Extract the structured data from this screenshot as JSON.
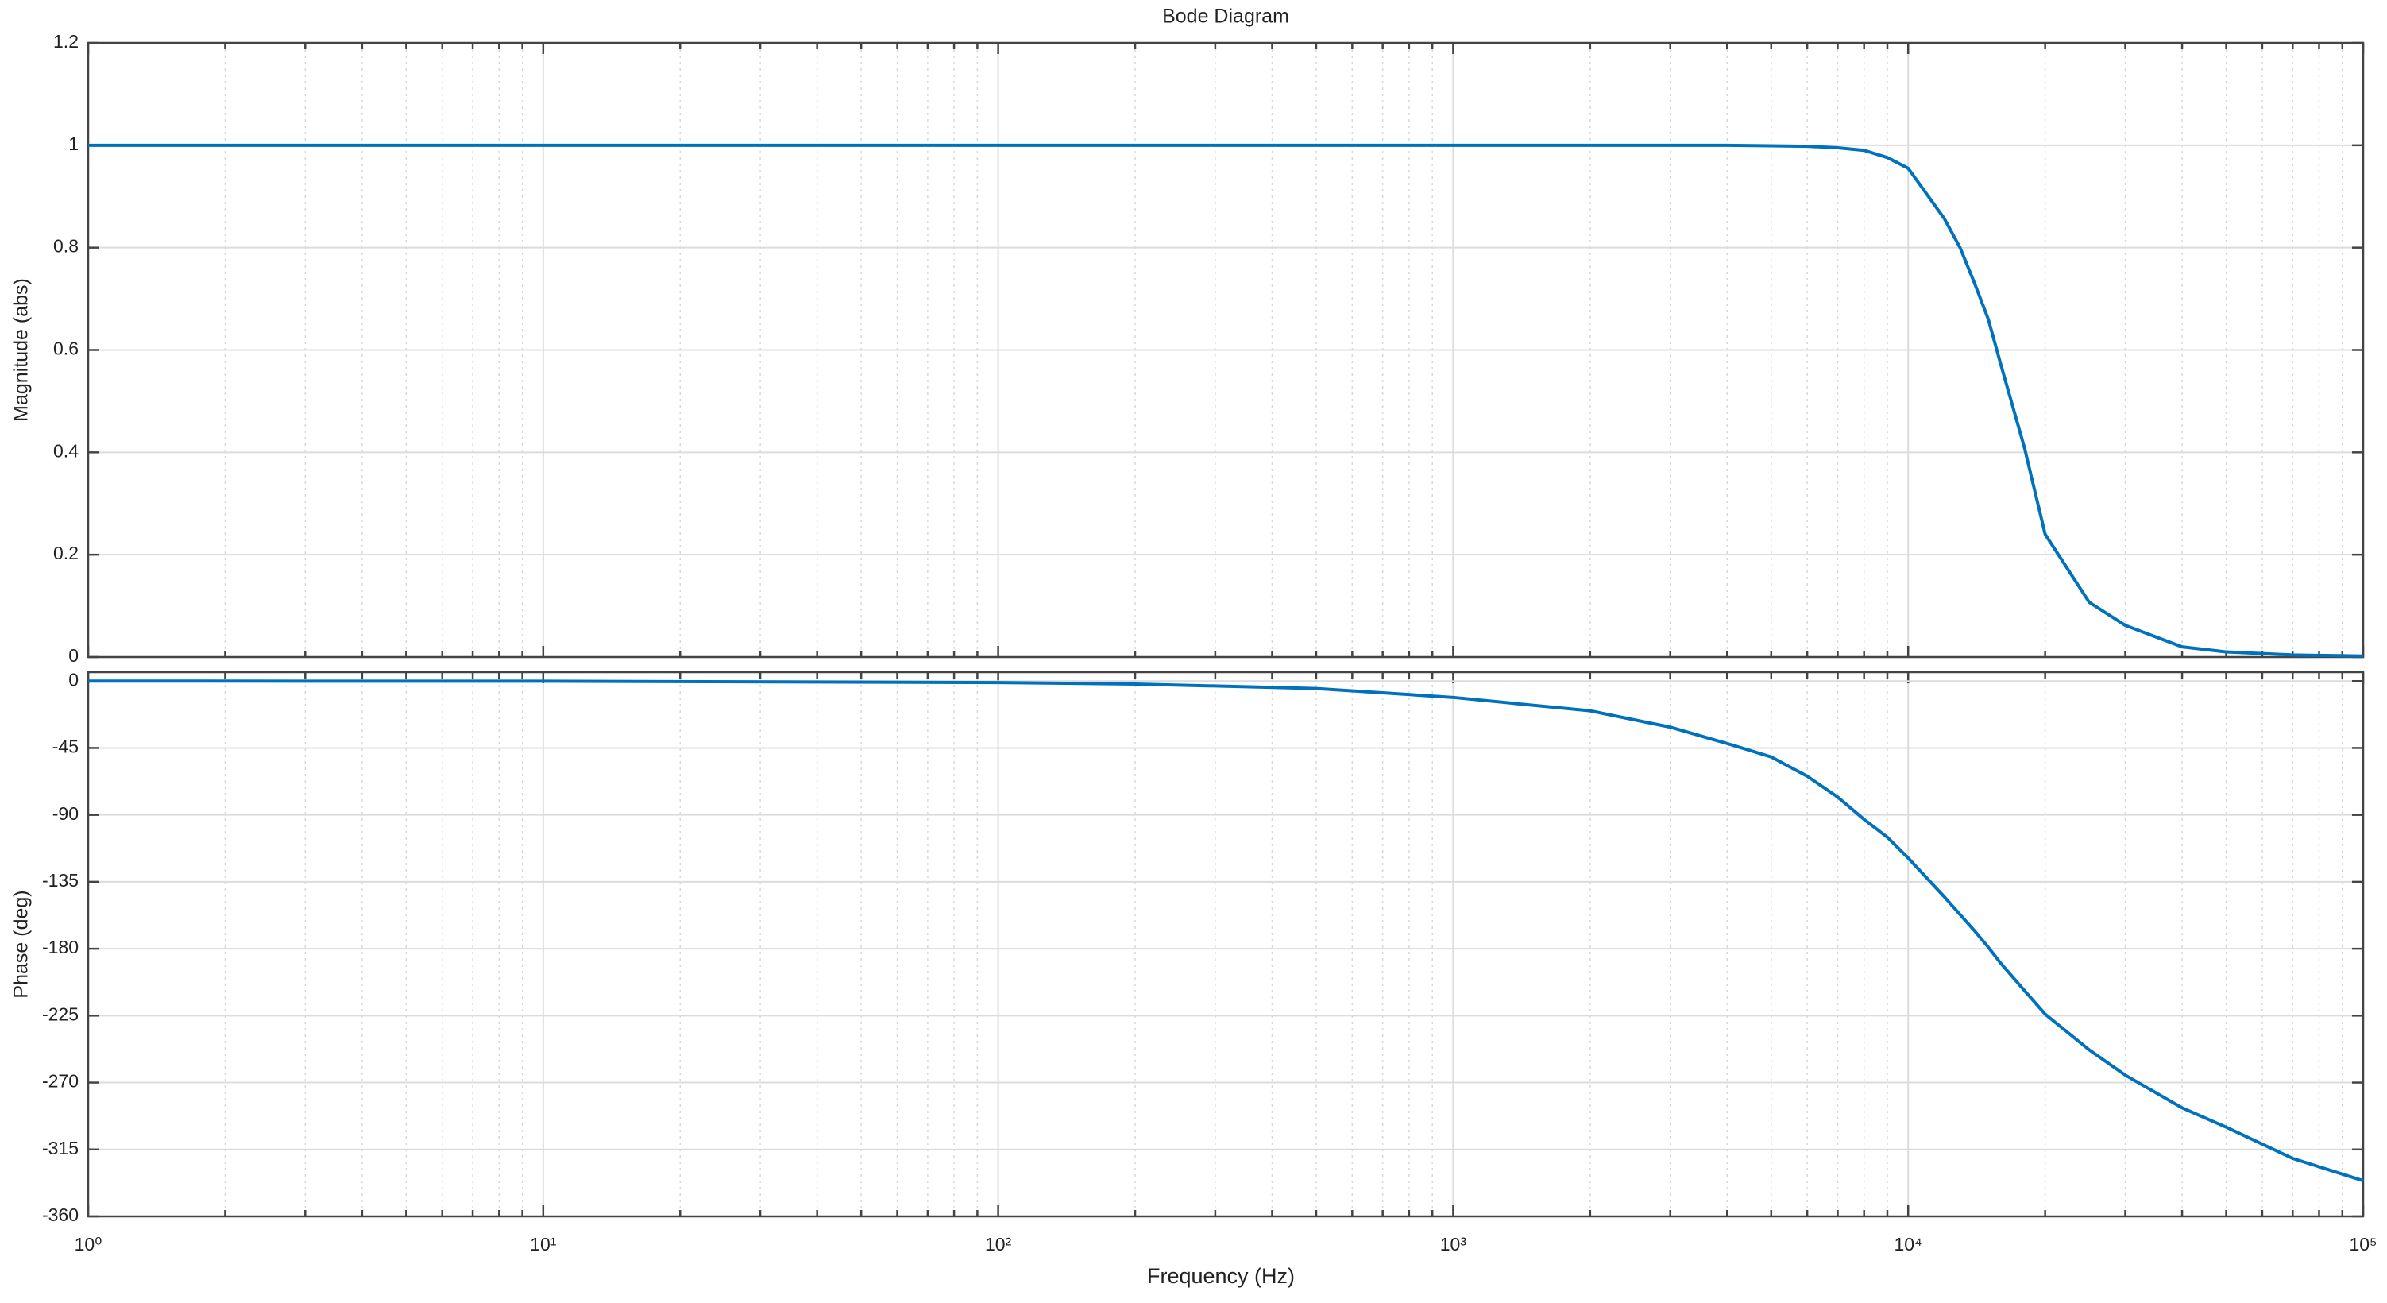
{
  "chart_data": [
    {
      "type": "line",
      "title": "Bode Diagram",
      "ylabel": "Magnitude (abs)",
      "xscale": "log",
      "grid": true,
      "xticklabels": false,
      "x": [
        1,
        10,
        100,
        200,
        500,
        1000,
        2000,
        3000,
        4000,
        5000,
        6000,
        7000,
        8000,
        9000,
        10000,
        12000,
        13000,
        14000,
        15000,
        16000,
        18000,
        20000,
        25000,
        30000,
        40000,
        50000,
        70000,
        100000
      ],
      "series": [
        {
          "color": "#0072BD",
          "values": [
            1,
            1,
            1,
            1,
            1,
            1,
            1,
            1,
            1,
            0.999,
            0.998,
            0.995,
            0.99,
            0.976,
            0.955,
            0.857,
            0.8,
            0.73,
            0.66,
            0.57,
            0.41,
            0.24,
            0.107,
            0.062,
            0.02,
            0.01,
            0.004,
            0.002
          ]
        }
      ],
      "xlim": [
        1,
        100000
      ],
      "xticks": [
        1,
        10,
        100,
        1000,
        10000,
        100000
      ],
      "ylim": [
        0,
        1.2
      ],
      "yticks": [
        0,
        0.2,
        0.4,
        0.6,
        0.8,
        1,
        1.2
      ]
    },
    {
      "type": "line",
      "ylabel": "Phase (deg)",
      "xlabel": "Frequency  (Hz)",
      "xscale": "log",
      "grid": true,
      "xticklabels": true,
      "x": [
        1,
        10,
        100,
        200,
        500,
        1000,
        2000,
        3000,
        4000,
        5000,
        6000,
        7000,
        8000,
        9000,
        10000,
        12000,
        13000,
        14000,
        15000,
        16000,
        18000,
        20000,
        25000,
        30000,
        40000,
        50000,
        70000,
        100000
      ],
      "series": [
        {
          "color": "#0072BD",
          "values": [
            0,
            -0.1,
            -1,
            -2,
            -5,
            -11,
            -20,
            -31,
            -42,
            -51,
            -64,
            -78,
            -93,
            -105,
            -119,
            -145,
            -157,
            -168,
            -179,
            -190,
            -208,
            -224,
            -248,
            -265,
            -287,
            -300,
            -321,
            -336
          ]
        }
      ],
      "xlim": [
        1,
        100000
      ],
      "xticks": [
        {
          "value": 1,
          "label": "10⁰"
        },
        {
          "value": 10,
          "label": "10¹"
        },
        {
          "value": 100,
          "label": "10²"
        },
        {
          "value": 1000,
          "label": "10³"
        },
        {
          "value": 10000,
          "label": "10⁴"
        },
        {
          "value": 100000,
          "label": "10⁵"
        }
      ],
      "ylim": [
        -360,
        6
      ],
      "yticks": [
        0,
        -45,
        -90,
        -135,
        -180,
        -225,
        -270,
        -315,
        -360
      ]
    }
  ]
}
